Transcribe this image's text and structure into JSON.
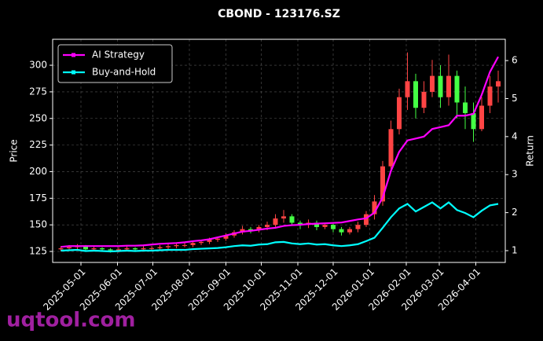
{
  "chart_data": {
    "type": "candlestick",
    "title": "CBOND - 123176.SZ",
    "ylabel": "Price",
    "y2label": "Return",
    "watermark": "uqtool.com",
    "x": [
      "2025-04-14",
      "2025-04-21",
      "2025-04-28",
      "2025-05-05",
      "2025-05-12",
      "2025-05-19",
      "2025-05-26",
      "2025-06-02",
      "2025-06-09",
      "2025-06-16",
      "2025-06-23",
      "2025-06-30",
      "2025-07-07",
      "2025-07-14",
      "2025-07-21",
      "2025-07-28",
      "2025-08-04",
      "2025-08-11",
      "2025-08-18",
      "2025-08-25",
      "2025-09-01",
      "2025-09-08",
      "2025-09-15",
      "2025-09-22",
      "2025-09-29",
      "2025-10-06",
      "2025-10-13",
      "2025-10-20",
      "2025-10-27",
      "2025-11-03",
      "2025-11-10",
      "2025-11-17",
      "2025-11-24",
      "2025-12-01",
      "2025-12-08",
      "2025-12-15",
      "2025-12-22",
      "2025-12-29",
      "2026-01-05",
      "2026-01-12",
      "2026-01-19",
      "2026-01-26",
      "2026-02-02",
      "2026-02-09",
      "2026-02-16",
      "2026-02-23",
      "2026-03-02",
      "2026-03-09",
      "2026-03-16",
      "2026-03-23",
      "2026-03-30",
      "2026-04-06",
      "2026-04-13",
      "2026-04-20"
    ],
    "open": [
      127,
      128,
      129,
      130,
      127,
      128,
      127,
      126,
      127,
      128,
      127,
      128,
      128,
      129,
      130,
      131,
      131,
      133,
      134,
      136,
      137,
      140,
      143,
      146,
      145,
      148,
      150,
      156,
      158,
      152,
      150,
      152,
      148,
      150,
      146,
      143,
      146,
      150,
      160,
      172,
      205,
      240,
      270,
      285,
      260,
      275,
      290,
      270,
      290,
      265,
      255,
      240,
      262,
      280
    ],
    "high": [
      130,
      131,
      132,
      131,
      130,
      129,
      128,
      129,
      130,
      129,
      130,
      130,
      131,
      132,
      133,
      133,
      135,
      136,
      138,
      139,
      142,
      145,
      149,
      148,
      150,
      153,
      160,
      164,
      160,
      154,
      155,
      154,
      152,
      151,
      148,
      148,
      153,
      163,
      178,
      210,
      248,
      278,
      312,
      292,
      285,
      305,
      300,
      310,
      295,
      280,
      265,
      270,
      290,
      295
    ],
    "low": [
      125,
      126,
      127,
      125,
      125,
      125,
      124,
      124,
      125,
      125,
      125,
      126,
      126,
      127,
      128,
      129,
      129,
      131,
      132,
      134,
      135,
      138,
      141,
      142,
      143,
      145,
      148,
      152,
      150,
      146,
      147,
      145,
      146,
      143,
      140,
      141,
      143,
      148,
      155,
      168,
      200,
      235,
      258,
      250,
      255,
      270,
      260,
      262,
      250,
      240,
      228,
      238,
      255,
      265
    ],
    "close": [
      128,
      129,
      130,
      127,
      128,
      127,
      126,
      127,
      128,
      127,
      128,
      128,
      129,
      130,
      131,
      131,
      133,
      134,
      136,
      137,
      140,
      143,
      146,
      145,
      148,
      150,
      156,
      158,
      152,
      150,
      152,
      148,
      150,
      146,
      143,
      146,
      150,
      160,
      172,
      205,
      240,
      270,
      285,
      260,
      275,
      290,
      270,
      290,
      265,
      255,
      240,
      262,
      280,
      285
    ],
    "up_color": "#ff4444",
    "down_color": "#44ff44",
    "series": [
      {
        "name": "AI Strategy",
        "color": "#ff00ff",
        "axis": "y2",
        "values": [
          1.1,
          1.12,
          1.12,
          1.12,
          1.12,
          1.12,
          1.12,
          1.12,
          1.13,
          1.13,
          1.14,
          1.16,
          1.18,
          1.19,
          1.2,
          1.22,
          1.25,
          1.27,
          1.3,
          1.35,
          1.4,
          1.45,
          1.5,
          1.52,
          1.55,
          1.58,
          1.6,
          1.65,
          1.67,
          1.68,
          1.7,
          1.71,
          1.72,
          1.73,
          1.74,
          1.78,
          1.82,
          1.85,
          2.0,
          2.4,
          3.1,
          3.6,
          3.9,
          3.95,
          4.0,
          4.2,
          4.25,
          4.3,
          4.55,
          4.55,
          4.6,
          5.1,
          5.7,
          6.1
        ]
      },
      {
        "name": "Buy-and-Hold",
        "color": "#00ffff",
        "axis": "y2",
        "values": [
          1.0,
          1.01,
          1.02,
          0.99,
          1.0,
          0.99,
          0.98,
          0.99,
          1.0,
          0.99,
          1.0,
          1.0,
          1.01,
          1.02,
          1.02,
          1.02,
          1.04,
          1.05,
          1.06,
          1.07,
          1.09,
          1.12,
          1.14,
          1.13,
          1.16,
          1.17,
          1.22,
          1.23,
          1.19,
          1.17,
          1.19,
          1.16,
          1.17,
          1.14,
          1.12,
          1.14,
          1.17,
          1.25,
          1.34,
          1.6,
          1.88,
          2.11,
          2.23,
          2.03,
          2.15,
          2.27,
          2.11,
          2.27,
          2.07,
          1.99,
          1.88,
          2.05,
          2.19,
          2.23
        ]
      }
    ],
    "xlim": [
      "2025-04-07",
      "2026-04-26"
    ],
    "xticks": [
      "2025-05-01",
      "2025-06-01",
      "2025-07-01",
      "2025-08-01",
      "2025-09-01",
      "2025-10-01",
      "2025-11-01",
      "2025-12-01",
      "2026-01-01",
      "2026-02-01",
      "2026-03-01",
      "2026-04-01"
    ],
    "ylim": [
      114.7,
      324.4
    ],
    "yticks": [
      125,
      150,
      175,
      200,
      225,
      250,
      275,
      300
    ],
    "y2lim": [
      0.69,
      6.56
    ],
    "y2ticks": [
      1,
      2,
      3,
      4,
      5,
      6
    ],
    "grid": true,
    "legend": "upper left"
  }
}
